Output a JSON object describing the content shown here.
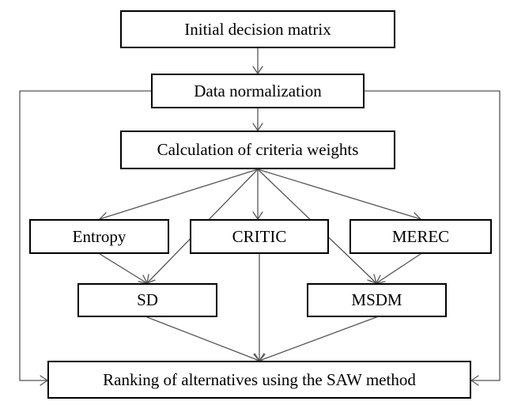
{
  "diagram": {
    "nodes": {
      "initial_matrix": "Initial decision matrix",
      "normalization": "Data normalization",
      "criteria_weights": "Calculation of criteria weights",
      "entropy": "Entropy",
      "critic": "CRITIC",
      "merec": "MEREC",
      "sd": "SD",
      "msdm": "MSDM",
      "ranking": "Ranking of alternatives using the SAW method"
    },
    "edges": [
      {
        "from": "initial_matrix",
        "to": "normalization"
      },
      {
        "from": "normalization",
        "to": "criteria_weights"
      },
      {
        "from": "criteria_weights",
        "to": "entropy"
      },
      {
        "from": "criteria_weights",
        "to": "critic"
      },
      {
        "from": "criteria_weights",
        "to": "merec"
      },
      {
        "from": "criteria_weights",
        "to": "sd"
      },
      {
        "from": "criteria_weights",
        "to": "msdm"
      },
      {
        "from": "entropy",
        "to": "sd"
      },
      {
        "from": "merec",
        "to": "msdm"
      },
      {
        "from": "critic",
        "to": "ranking"
      },
      {
        "from": "sd",
        "to": "ranking"
      },
      {
        "from": "msdm",
        "to": "ranking"
      },
      {
        "from": "normalization",
        "to": "ranking"
      }
    ]
  }
}
